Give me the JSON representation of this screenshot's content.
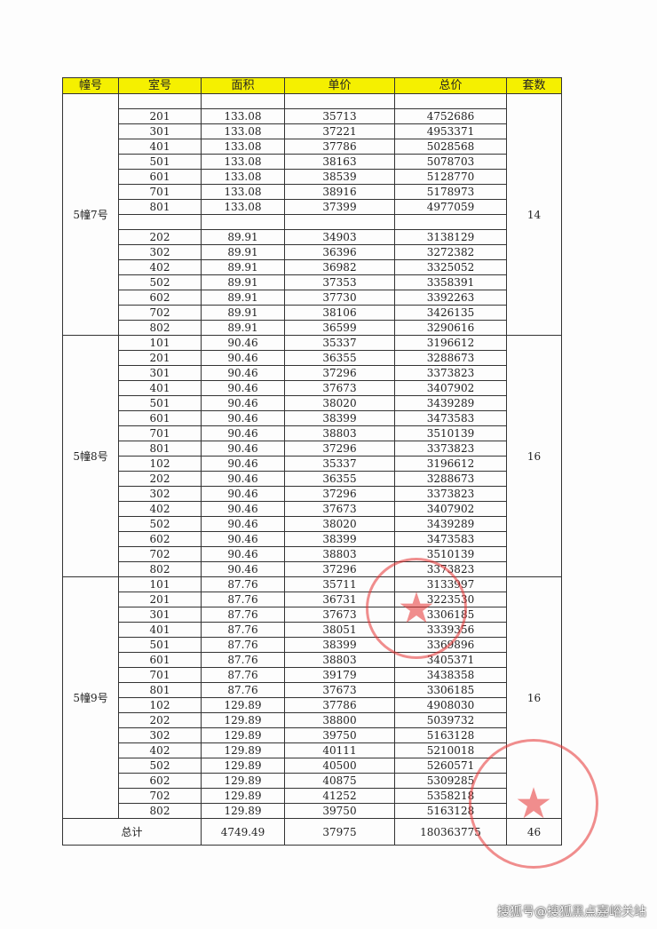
{
  "headers": [
    "幢号",
    "室号",
    "面积",
    "单价",
    "总价",
    "套数"
  ],
  "groups": [
    {
      "building": "5幢7号",
      "count": "14",
      "rows": [
        [
          "",
          "",
          "",
          ""
        ],
        [
          "201",
          "133.08",
          "35713",
          "4752686"
        ],
        [
          "301",
          "133.08",
          "37221",
          "4953371"
        ],
        [
          "401",
          "133.08",
          "37786",
          "5028568"
        ],
        [
          "501",
          "133.08",
          "38163",
          "5078703"
        ],
        [
          "601",
          "133.08",
          "38539",
          "5128770"
        ],
        [
          "701",
          "133.08",
          "38916",
          "5178973"
        ],
        [
          "801",
          "133.08",
          "37399",
          "4977059"
        ],
        [
          "",
          "",
          "",
          ""
        ],
        [
          "202",
          "89.91",
          "34903",
          "3138129"
        ],
        [
          "302",
          "89.91",
          "36396",
          "3272382"
        ],
        [
          "402",
          "89.91",
          "36982",
          "3325052"
        ],
        [
          "502",
          "89.91",
          "37353",
          "3358391"
        ],
        [
          "602",
          "89.91",
          "37730",
          "3392263"
        ],
        [
          "702",
          "89.91",
          "38106",
          "3426135"
        ],
        [
          "802",
          "89.91",
          "36599",
          "3290616"
        ]
      ]
    },
    {
      "building": "5幢8号",
      "count": "16",
      "rows": [
        [
          "101",
          "90.46",
          "35337",
          "3196612"
        ],
        [
          "201",
          "90.46",
          "36355",
          "3288673"
        ],
        [
          "301",
          "90.46",
          "37296",
          "3373823"
        ],
        [
          "401",
          "90.46",
          "37673",
          "3407902"
        ],
        [
          "501",
          "90.46",
          "38020",
          "3439289"
        ],
        [
          "601",
          "90.46",
          "38399",
          "3473583"
        ],
        [
          "701",
          "90.46",
          "38803",
          "3510139"
        ],
        [
          "801",
          "90.46",
          "37296",
          "3373823"
        ],
        [
          "102",
          "90.46",
          "35337",
          "3196612"
        ],
        [
          "202",
          "90.46",
          "36355",
          "3288673"
        ],
        [
          "302",
          "90.46",
          "37296",
          "3373823"
        ],
        [
          "402",
          "90.46",
          "37673",
          "3407902"
        ],
        [
          "502",
          "90.46",
          "38020",
          "3439289"
        ],
        [
          "602",
          "90.46",
          "38399",
          "3473583"
        ],
        [
          "702",
          "90.46",
          "38803",
          "3510139"
        ],
        [
          "802",
          "90.46",
          "37296",
          "3373823"
        ]
      ]
    },
    {
      "building": "5幢9号",
      "count": "16",
      "rows": [
        [
          "101",
          "87.76",
          "35711",
          "3133997"
        ],
        [
          "201",
          "87.76",
          "36731",
          "3223530"
        ],
        [
          "301",
          "87.76",
          "37673",
          "3306185"
        ],
        [
          "401",
          "87.76",
          "38051",
          "3339356"
        ],
        [
          "501",
          "87.76",
          "38399",
          "3369896"
        ],
        [
          "601",
          "87.76",
          "38803",
          "3405371"
        ],
        [
          "701",
          "87.76",
          "39179",
          "3438358"
        ],
        [
          "801",
          "87.76",
          "37673",
          "3306185"
        ],
        [
          "102",
          "129.89",
          "37786",
          "4908030"
        ],
        [
          "202",
          "129.89",
          "38800",
          "5039732"
        ],
        [
          "302",
          "129.89",
          "39750",
          "5163128"
        ],
        [
          "402",
          "129.89",
          "40111",
          "5210018"
        ],
        [
          "502",
          "129.89",
          "40500",
          "5260571"
        ],
        [
          "602",
          "129.89",
          "40875",
          "5309285"
        ],
        [
          "702",
          "129.89",
          "41252",
          "5358218"
        ],
        [
          "802",
          "129.89",
          "39750",
          "5163128"
        ]
      ]
    }
  ],
  "total": {
    "label": "总计",
    "area": "4749.49",
    "unit_price": "37975",
    "total_price": "180363775",
    "count": "46"
  },
  "watermark": "搜狐号@搜狐黑点嘉峪关站",
  "colors": {
    "header_bg": "#f5f000",
    "stamp": "#e63232"
  }
}
